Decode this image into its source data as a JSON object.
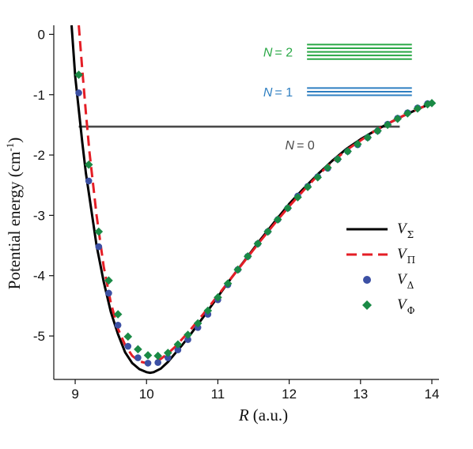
{
  "chart_data": {
    "type": "line",
    "xlabel_var": "R",
    "xlabel_unit": "(a.u.)",
    "ylabel": "Potential energy (cm",
    "ylabel_sup": "-1",
    "ylabel_close": ")",
    "xlim": [
      8.7,
      14.1
    ],
    "ylim": [
      -5.72,
      0.15
    ],
    "xticks": [
      9,
      10,
      11,
      12,
      13,
      14
    ],
    "yticks": [
      0,
      -1,
      -2,
      -3,
      -4,
      -5
    ],
    "grid": false,
    "legend_position": "right",
    "colors": {
      "sigma": "#000000",
      "pi": "#e41e26",
      "delta": "#3c50a4",
      "phi": "#1a8a45",
      "n0": "#4a4a4a",
      "n1": "#2f7fc1",
      "n2": "#2aa846"
    },
    "series": [
      {
        "name": "V",
        "subscript": "Σ",
        "style": "solid-line",
        "x": [
          8.95,
          9.0,
          9.05,
          9.1,
          9.15,
          9.2,
          9.3,
          9.4,
          9.5,
          9.6,
          9.7,
          9.8,
          9.9,
          10.0,
          10.05,
          10.1,
          10.2,
          10.3,
          10.4,
          10.5,
          10.6,
          10.8,
          11.0,
          11.2,
          11.4,
          11.6,
          11.8,
          12.0,
          12.2,
          12.4,
          12.6,
          12.8,
          13.0,
          13.2,
          13.4,
          13.6,
          13.8,
          14.0
        ],
        "y": [
          0.15,
          -0.7,
          -1.25,
          -1.8,
          -2.3,
          -2.7,
          -3.5,
          -4.1,
          -4.6,
          -4.97,
          -5.27,
          -5.45,
          -5.55,
          -5.6,
          -5.61,
          -5.6,
          -5.54,
          -5.43,
          -5.29,
          -5.15,
          -5.0,
          -4.68,
          -4.35,
          -4.02,
          -3.71,
          -3.4,
          -3.1,
          -2.81,
          -2.56,
          -2.32,
          -2.1,
          -1.9,
          -1.74,
          -1.6,
          -1.47,
          -1.35,
          -1.24,
          -1.14
        ]
      },
      {
        "name": "V",
        "subscript": "Π",
        "style": "dashed-line",
        "x": [
          9.05,
          9.1,
          9.15,
          9.2,
          9.3,
          9.4,
          9.5,
          9.6,
          9.7,
          9.8,
          9.9,
          10.0,
          10.1,
          10.2,
          10.3,
          10.4,
          10.5,
          10.6,
          10.8,
          11.0,
          11.2,
          11.4,
          11.6,
          11.8,
          12.0,
          12.2,
          12.4,
          12.6,
          12.8,
          13.0,
          13.2,
          13.4,
          13.6,
          13.8,
          14.0
        ],
        "y": [
          0.15,
          -0.6,
          -1.3,
          -1.95,
          -3.0,
          -3.85,
          -4.45,
          -4.88,
          -5.15,
          -5.33,
          -5.42,
          -5.45,
          -5.43,
          -5.38,
          -5.29,
          -5.18,
          -5.05,
          -4.92,
          -4.63,
          -4.33,
          -4.02,
          -3.72,
          -3.42,
          -3.13,
          -2.85,
          -2.59,
          -2.34,
          -2.12,
          -1.92,
          -1.76,
          -1.6,
          -1.47,
          -1.35,
          -1.24,
          -1.14
        ]
      },
      {
        "name": "V",
        "subscript": "Δ",
        "style": "circle-markers",
        "x": [
          9.05,
          9.19,
          9.33,
          9.47,
          9.6,
          9.74,
          9.88,
          10.02,
          10.16,
          10.3,
          10.44,
          10.58,
          10.72,
          10.86,
          11.0,
          11.14,
          11.28,
          11.42,
          11.56,
          11.7,
          11.84,
          11.98,
          12.12,
          12.26,
          12.4,
          12.54,
          12.68,
          12.82,
          12.96,
          13.1,
          13.24,
          13.38,
          13.52,
          13.66,
          13.8,
          13.94
        ],
        "y": [
          -0.97,
          -2.43,
          -3.52,
          -4.29,
          -4.82,
          -5.17,
          -5.36,
          -5.45,
          -5.44,
          -5.36,
          -5.23,
          -5.06,
          -4.86,
          -4.64,
          -4.4,
          -4.15,
          -3.9,
          -3.68,
          -3.47,
          -3.27,
          -3.07,
          -2.88,
          -2.68,
          -2.52,
          -2.36,
          -2.22,
          -2.07,
          -1.94,
          -1.83,
          -1.71,
          -1.6,
          -1.49,
          -1.39,
          -1.3,
          -1.22,
          -1.15
        ]
      },
      {
        "name": "V",
        "subscript": "Φ",
        "style": "diamond-markers",
        "x": [
          9.05,
          9.19,
          9.33,
          9.47,
          9.6,
          9.74,
          9.88,
          10.02,
          10.16,
          10.3,
          10.44,
          10.58,
          10.72,
          10.86,
          11.0,
          11.14,
          11.28,
          11.42,
          11.56,
          11.7,
          11.84,
          11.98,
          12.12,
          12.26,
          12.4,
          12.54,
          12.68,
          12.82,
          12.96,
          13.1,
          13.24,
          13.38,
          13.52,
          13.66,
          13.8,
          13.94,
          14.0
        ],
        "y": [
          -0.67,
          -2.16,
          -3.27,
          -4.08,
          -4.64,
          -5.01,
          -5.22,
          -5.32,
          -5.33,
          -5.28,
          -5.14,
          -4.98,
          -4.79,
          -4.58,
          -4.36,
          -4.13,
          -3.9,
          -3.68,
          -3.47,
          -3.27,
          -3.07,
          -2.88,
          -2.7,
          -2.53,
          -2.37,
          -2.21,
          -2.07,
          -1.94,
          -1.82,
          -1.71,
          -1.6,
          -1.5,
          -1.4,
          -1.31,
          -1.23,
          -1.16,
          -1.14
        ]
      }
    ],
    "levels": [
      {
        "label_var": "N",
        "label_val": "= 0",
        "x_range": [
          9.05,
          13.55
        ],
        "y_values": [
          -1.53
        ],
        "label_x": 12.15,
        "label_y": -1.83
      },
      {
        "label_var": "N",
        "label_val": "= 1",
        "x_range": [
          12.25,
          13.72
        ],
        "y_values": [
          -0.89,
          -0.95,
          -1.01
        ],
        "label_x": 12.05,
        "label_y": -0.95
      },
      {
        "label_var": "N",
        "label_val": "= 2",
        "x_range": [
          12.25,
          13.72
        ],
        "y_values": [
          -0.17,
          -0.23,
          -0.29,
          -0.35,
          -0.41
        ],
        "label_x": 12.05,
        "label_y": -0.29
      }
    ]
  }
}
